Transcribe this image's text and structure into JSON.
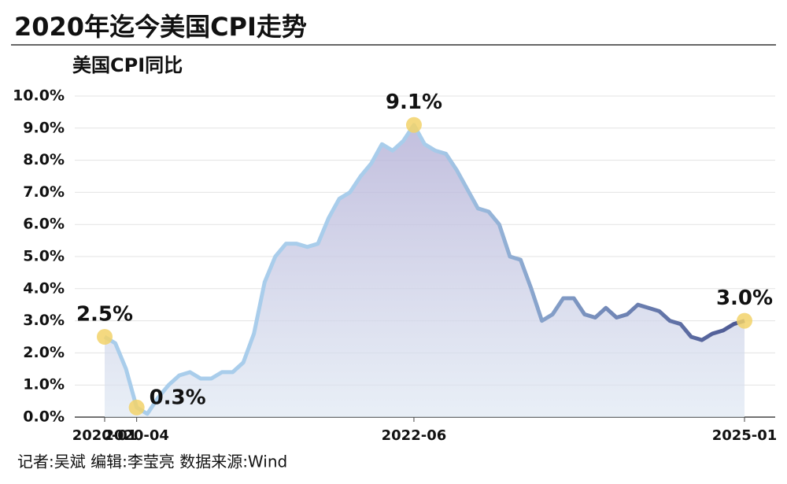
{
  "chart_data": {
    "type": "line",
    "title": "2020年迄今美国CPI走势",
    "note": "记者:吴斌  编辑:李莹亮  数据来源:Wind",
    "categories": [
      "2020-01",
      null,
      null,
      "2020-04",
      null,
      null,
      null,
      null,
      null,
      null,
      null,
      null,
      null,
      null,
      null,
      null,
      null,
      null,
      null,
      null,
      null,
      null,
      null,
      null,
      null,
      null,
      null,
      null,
      null,
      "2022-06",
      null,
      null,
      null,
      null,
      null,
      null,
      null,
      null,
      null,
      null,
      null,
      null,
      null,
      null,
      null,
      null,
      null,
      null,
      null,
      null,
      null,
      null,
      null,
      null,
      null,
      null,
      null,
      null,
      null,
      null,
      "2025-01"
    ],
    "series": [
      {
        "name": "美国CPI同比",
        "colors": [
          "#a9cdeb",
          "#4b5792"
        ],
        "values": [
          2.5,
          2.3,
          1.5,
          0.3,
          0.1,
          0.6,
          1.0,
          1.3,
          1.4,
          1.2,
          1.2,
          1.4,
          1.4,
          1.7,
          2.6,
          4.2,
          5.0,
          5.4,
          5.4,
          5.3,
          5.4,
          6.2,
          6.8,
          7.0,
          7.5,
          7.9,
          8.5,
          8.3,
          8.6,
          9.1,
          8.5,
          8.3,
          8.2,
          7.7,
          7.1,
          6.5,
          6.4,
          6.0,
          5.0,
          4.9,
          4.0,
          3.0,
          3.2,
          3.7,
          3.7,
          3.2,
          3.1,
          3.4,
          3.1,
          3.2,
          3.5,
          3.4,
          3.3,
          3.0,
          2.9,
          2.5,
          2.4,
          2.6,
          2.7,
          2.9,
          3.0
        ],
        "value_labels": [
          "2.5%",
          null,
          null,
          "0.3%",
          null,
          null,
          null,
          null,
          null,
          null,
          null,
          null,
          null,
          null,
          null,
          null,
          null,
          null,
          null,
          null,
          null,
          null,
          null,
          null,
          null,
          null,
          null,
          null,
          null,
          "9.1%",
          null,
          null,
          null,
          null,
          null,
          null,
          null,
          null,
          null,
          null,
          null,
          null,
          null,
          null,
          null,
          null,
          null,
          null,
          null,
          null,
          null,
          null,
          null,
          null,
          null,
          null,
          null,
          null,
          null,
          null,
          "3.0%"
        ]
      }
    ],
    "ylim": [
      0,
      10
    ],
    "yticks": [
      {
        "value": 0,
        "label": "0.0%"
      },
      {
        "value": 1,
        "label": "1.0%"
      },
      {
        "value": 2,
        "label": "2.0%"
      },
      {
        "value": 3,
        "label": "3.0%"
      },
      {
        "value": 4,
        "label": "4.0%"
      },
      {
        "value": 5,
        "label": "5.0%"
      },
      {
        "value": 6,
        "label": "6.0%"
      },
      {
        "value": 7,
        "label": "7.0%"
      },
      {
        "value": 8,
        "label": "8.0%"
      },
      {
        "value": 9,
        "label": "9.0%"
      },
      {
        "value": 10,
        "label": "10.0%"
      }
    ],
    "grid": true,
    "marker_color": "#f2d26a"
  }
}
